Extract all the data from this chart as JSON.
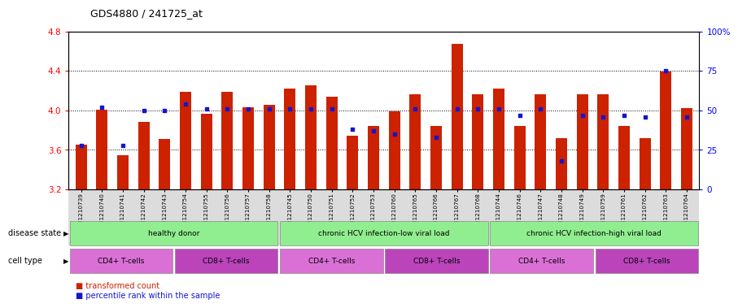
{
  "title": "GDS4880 / 241725_at",
  "samples": [
    "GSM1210739",
    "GSM1210740",
    "GSM1210741",
    "GSM1210742",
    "GSM1210743",
    "GSM1210754",
    "GSM1210755",
    "GSM1210756",
    "GSM1210757",
    "GSM1210758",
    "GSM1210745",
    "GSM1210750",
    "GSM1210751",
    "GSM1210752",
    "GSM1210753",
    "GSM1210760",
    "GSM1210765",
    "GSM1210766",
    "GSM1210767",
    "GSM1210768",
    "GSM1210744",
    "GSM1210746",
    "GSM1210747",
    "GSM1210748",
    "GSM1210749",
    "GSM1210759",
    "GSM1210761",
    "GSM1210762",
    "GSM1210763",
    "GSM1210764"
  ],
  "transformed_count": [
    3.65,
    4.01,
    3.55,
    3.88,
    3.71,
    4.19,
    3.97,
    4.19,
    4.03,
    4.06,
    4.22,
    4.25,
    4.14,
    3.74,
    3.84,
    3.99,
    4.16,
    3.84,
    4.67,
    4.16,
    4.22,
    3.84,
    4.16,
    3.72,
    4.16,
    4.16,
    3.84,
    3.72,
    4.39,
    4.02
  ],
  "percentile_rank": [
    28,
    52,
    28,
    50,
    50,
    54,
    51,
    51,
    51,
    51,
    51,
    51,
    51,
    38,
    37,
    35,
    51,
    33,
    51,
    51,
    51,
    47,
    51,
    18,
    47,
    46,
    47,
    46,
    75,
    46
  ],
  "ymin": 3.2,
  "ymax": 4.8,
  "yticks": [
    3.2,
    3.6,
    4.0,
    4.4,
    4.8
  ],
  "bar_color": "#CC2200",
  "dot_color": "#1515CC",
  "ds_ranges": [
    [
      0,
      10,
      "healthy donor"
    ],
    [
      10,
      20,
      "chronic HCV infection-low viral load"
    ],
    [
      20,
      30,
      "chronic HCV infection-high viral load"
    ]
  ],
  "ds_color": "#90EE90",
  "ct_ranges": [
    [
      0,
      5,
      "CD4+ T-cells",
      "#DA70D6"
    ],
    [
      5,
      10,
      "CD8+ T-cells",
      "#BB44BB"
    ],
    [
      10,
      15,
      "CD4+ T-cells",
      "#DA70D6"
    ],
    [
      15,
      20,
      "CD8+ T-cells",
      "#BB44BB"
    ],
    [
      20,
      25,
      "CD4+ T-cells",
      "#DA70D6"
    ],
    [
      25,
      30,
      "CD8+ T-cells",
      "#BB44BB"
    ]
  ],
  "legend_red_label": "transformed count",
  "legend_blue_label": "percentile rank within the sample",
  "bg_color": "#DCDCDC"
}
